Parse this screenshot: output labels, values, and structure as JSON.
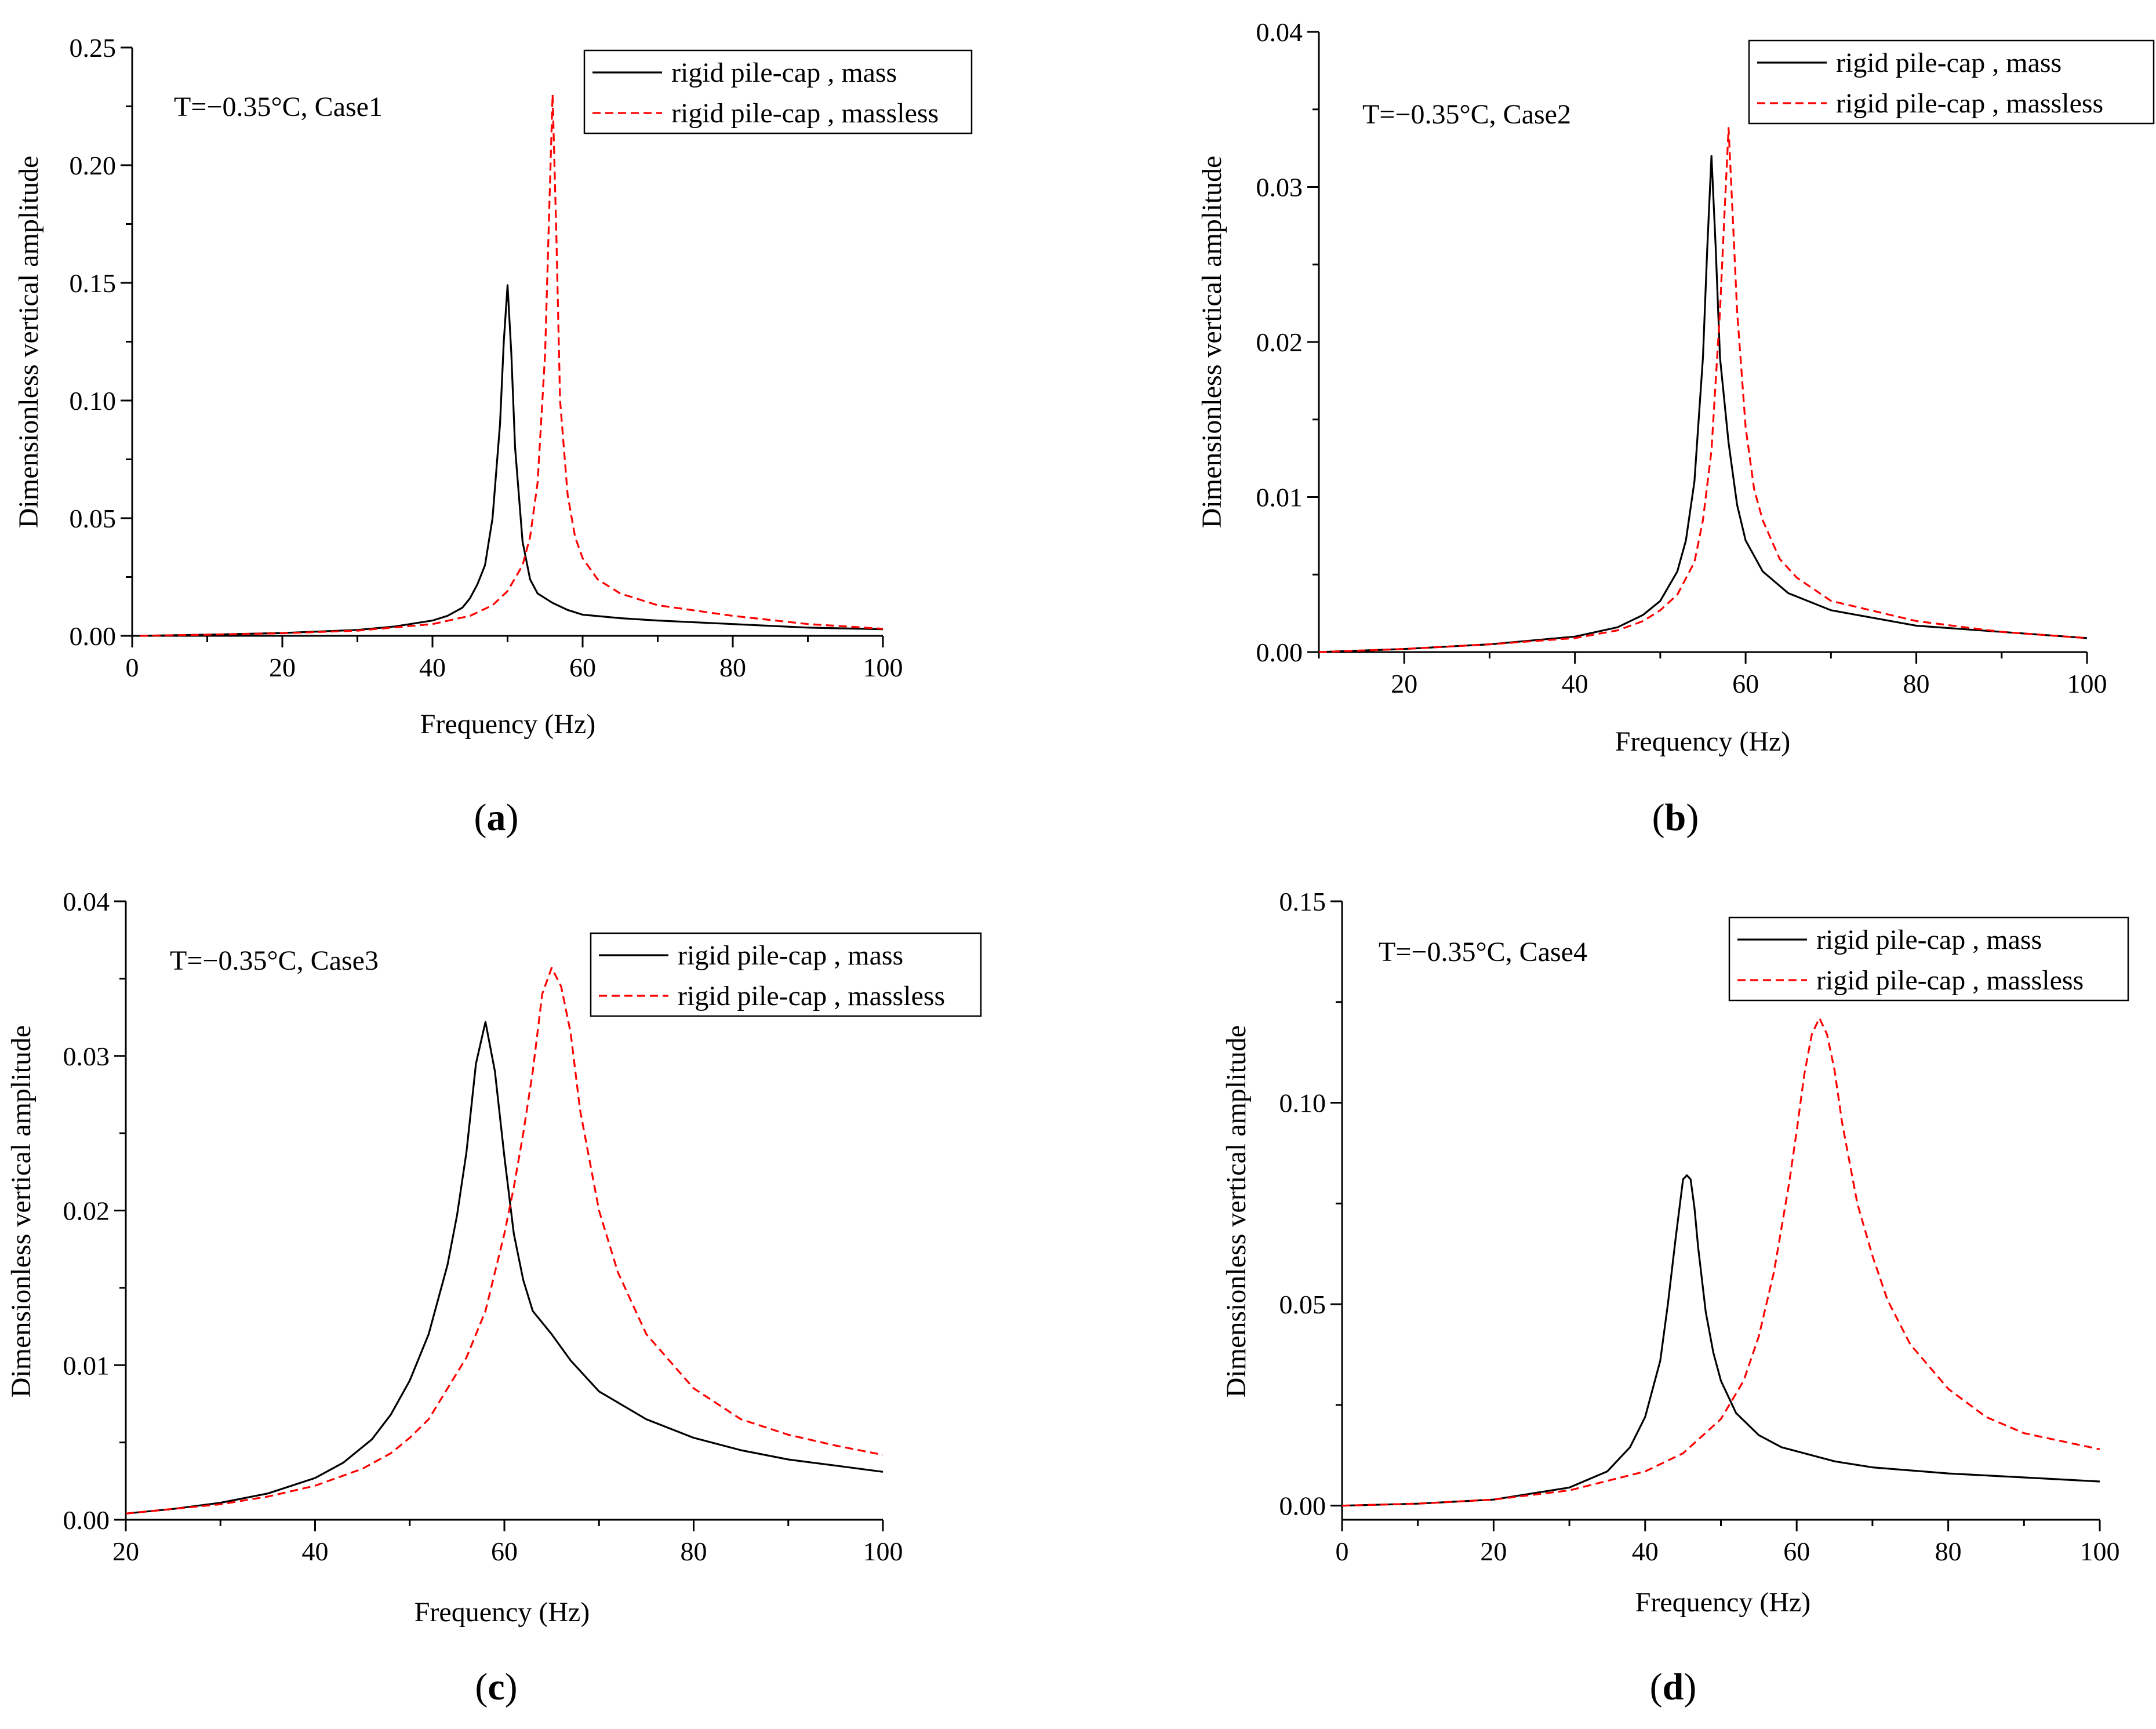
{
  "chart_data": [
    {
      "id": "a",
      "type": "line",
      "panel_label": "a",
      "annotation": "T=−0.35°C, Case1",
      "xlabel": "Frequency (Hz)",
      "ylabel": "Dimensionless vertical amplitude",
      "xlim": [
        0,
        100
      ],
      "ylim": [
        0,
        0.25
      ],
      "xticks": [
        0,
        20,
        40,
        60,
        80,
        100
      ],
      "xtick_labels": [
        "0",
        "20",
        "40",
        "60",
        "80",
        "100"
      ],
      "yticks": [
        0,
        0.05,
        0.1,
        0.15,
        0.2,
        0.25
      ],
      "ytick_labels": [
        "0.00",
        "0.05",
        "0.10",
        "0.15",
        "0.20",
        "0.25"
      ],
      "legend_position": "top-right",
      "series": [
        {
          "name": "rigid pile-cap , mass",
          "color": "#000000",
          "style": "solid",
          "x": [
            1,
            10,
            20,
            30,
            35,
            40,
            42,
            44,
            45,
            46,
            47,
            48,
            49,
            49.5,
            50,
            50.5,
            51,
            52,
            53,
            54,
            56,
            58,
            60,
            65,
            70,
            80,
            90,
            100
          ],
          "y": [
            0.0,
            0.0005,
            0.0012,
            0.0025,
            0.004,
            0.0065,
            0.0085,
            0.012,
            0.016,
            0.022,
            0.03,
            0.05,
            0.09,
            0.125,
            0.149,
            0.12,
            0.08,
            0.04,
            0.024,
            0.018,
            0.014,
            0.011,
            0.009,
            0.0075,
            0.0065,
            0.005,
            0.0035,
            0.0028
          ]
        },
        {
          "name": "rigid pile-cap , massless",
          "color": "#ff0000",
          "style": "dashed",
          "x": [
            1,
            10,
            20,
            30,
            40,
            45,
            48,
            50,
            52,
            53,
            54,
            55,
            55.5,
            56,
            56.5,
            57,
            58,
            59,
            60,
            62,
            65,
            70,
            80,
            90,
            100
          ],
          "y": [
            0.0,
            0.0005,
            0.0011,
            0.0022,
            0.005,
            0.0085,
            0.013,
            0.019,
            0.03,
            0.042,
            0.065,
            0.12,
            0.175,
            0.23,
            0.17,
            0.1,
            0.06,
            0.042,
            0.033,
            0.024,
            0.018,
            0.013,
            0.0085,
            0.005,
            0.003
          ]
        }
      ]
    },
    {
      "id": "b",
      "type": "line",
      "panel_label": "b",
      "annotation": "T=−0.35°C, Case2",
      "xlabel": "Frequency (Hz)",
      "ylabel": "Dimensionless vertical amplitude",
      "xlim": [
        10,
        100
      ],
      "ylim": [
        0,
        0.04
      ],
      "xticks": [
        20,
        40,
        60,
        80,
        100
      ],
      "xtick_labels": [
        "20",
        "40",
        "60",
        "80",
        "100"
      ],
      "yticks": [
        0,
        0.01,
        0.02,
        0.03,
        0.04
      ],
      "ytick_labels": [
        "0.00",
        "0.01",
        "0.02",
        "0.03",
        "0.04"
      ],
      "legend_position": "top-right",
      "series": [
        {
          "name": "rigid pile-cap , mass",
          "color": "#000000",
          "style": "solid",
          "x": [
            10,
            20,
            30,
            40,
            45,
            48,
            50,
            52,
            53,
            54,
            55,
            55.5,
            56,
            56.5,
            57,
            58,
            59,
            60,
            62,
            65,
            70,
            80,
            90,
            100
          ],
          "y": [
            0.0,
            0.0002,
            0.0005,
            0.001,
            0.0016,
            0.0024,
            0.0033,
            0.0052,
            0.0072,
            0.011,
            0.019,
            0.026,
            0.032,
            0.026,
            0.019,
            0.0135,
            0.0095,
            0.0072,
            0.0052,
            0.0038,
            0.0027,
            0.0017,
            0.0013,
            0.0009
          ]
        },
        {
          "name": "rigid pile-cap , massless",
          "color": "#ff0000",
          "style": "dashed",
          "x": [
            10,
            20,
            30,
            40,
            45,
            48,
            50,
            52,
            54,
            55,
            56,
            57,
            57.5,
            58,
            58.5,
            59,
            60,
            61,
            62,
            64,
            66,
            70,
            80,
            90,
            100
          ],
          "y": [
            0.0,
            0.0002,
            0.0005,
            0.0009,
            0.0014,
            0.002,
            0.0027,
            0.0037,
            0.0058,
            0.0085,
            0.013,
            0.022,
            0.028,
            0.0338,
            0.028,
            0.022,
            0.0145,
            0.0105,
            0.0085,
            0.006,
            0.0048,
            0.0033,
            0.002,
            0.0013,
            0.0009
          ]
        }
      ]
    },
    {
      "id": "c",
      "type": "line",
      "panel_label": "c",
      "annotation": "T=−0.35°C, Case3",
      "xlabel": "Frequency (Hz)",
      "ylabel": "Dimensionless vertical amplitude",
      "xlim": [
        20,
        100
      ],
      "ylim": [
        0,
        0.04
      ],
      "xticks": [
        20,
        40,
        60,
        80,
        100
      ],
      "xtick_labels": [
        "20",
        "40",
        "60",
        "80",
        "100"
      ],
      "yticks": [
        0,
        0.01,
        0.02,
        0.03,
        0.04
      ],
      "ytick_labels": [
        "0.00",
        "0.01",
        "0.02",
        "0.03",
        "0.04"
      ],
      "legend_position": "top-right",
      "series": [
        {
          "name": "rigid pile-cap , mass",
          "color": "#000000",
          "style": "solid",
          "x": [
            20,
            25,
            30,
            35,
            40,
            43,
            46,
            48,
            50,
            52,
            54,
            55,
            56,
            57,
            58,
            59,
            60,
            61,
            62,
            63,
            65,
            67,
            70,
            75,
            80,
            85,
            90,
            95,
            100
          ],
          "y": [
            0.0004,
            0.0007,
            0.0011,
            0.0017,
            0.0027,
            0.0037,
            0.0052,
            0.0068,
            0.009,
            0.012,
            0.0165,
            0.0197,
            0.0238,
            0.0295,
            0.0322,
            0.029,
            0.0235,
            0.0185,
            0.0155,
            0.0135,
            0.012,
            0.0103,
            0.0083,
            0.0065,
            0.0053,
            0.0045,
            0.0039,
            0.0035,
            0.0031
          ]
        },
        {
          "name": "rigid pile-cap , massless",
          "color": "#ff0000",
          "style": "dashed",
          "x": [
            20,
            25,
            30,
            35,
            40,
            45,
            48,
            50,
            52,
            54,
            56,
            58,
            60,
            61,
            62,
            63,
            64,
            65,
            66,
            67,
            68,
            70,
            72,
            75,
            80,
            85,
            90,
            95,
            100
          ],
          "y": [
            0.0004,
            0.0007,
            0.001,
            0.0015,
            0.0022,
            0.0033,
            0.0043,
            0.0053,
            0.0065,
            0.0085,
            0.0105,
            0.0135,
            0.0185,
            0.0215,
            0.025,
            0.029,
            0.034,
            0.0357,
            0.0345,
            0.0315,
            0.0265,
            0.02,
            0.016,
            0.012,
            0.0085,
            0.0065,
            0.0055,
            0.0048,
            0.0042
          ]
        }
      ]
    },
    {
      "id": "d",
      "type": "line",
      "panel_label": "d",
      "annotation": "T=−0.35°C, Case4",
      "xlabel": "Frequency (Hz)",
      "ylabel": "Dimensionless vertical amplitude",
      "xlim": [
        0,
        100
      ],
      "ylim": [
        -0.0035,
        0.15
      ],
      "xticks": [
        0,
        20,
        40,
        60,
        80,
        100
      ],
      "xtick_labels": [
        "0",
        "20",
        "40",
        "60",
        "80",
        "100"
      ],
      "yticks": [
        0,
        0.05,
        0.1,
        0.15
      ],
      "ytick_labels": [
        "0.00",
        "0.05",
        "0.10",
        "0.15"
      ],
      "legend_position": "top-right",
      "series": [
        {
          "name": "rigid pile-cap , mass",
          "color": "#000000",
          "style": "solid",
          "x": [
            0,
            10,
            20,
            30,
            35,
            38,
            40,
            42,
            43,
            44,
            45,
            45.5,
            46,
            46.5,
            47,
            48,
            49,
            50,
            52,
            55,
            58,
            60,
            65,
            70,
            80,
            90,
            100
          ],
          "y": [
            0.0,
            0.0005,
            0.0015,
            0.0045,
            0.0085,
            0.0145,
            0.022,
            0.036,
            0.05,
            0.066,
            0.081,
            0.082,
            0.081,
            0.074,
            0.064,
            0.048,
            0.038,
            0.031,
            0.023,
            0.0175,
            0.0145,
            0.0135,
            0.011,
            0.0095,
            0.008,
            0.007,
            0.006
          ]
        },
        {
          "name": "rigid pile-cap , massless",
          "color": "#ff0000",
          "style": "dashed",
          "x": [
            0,
            10,
            20,
            30,
            40,
            45,
            50,
            53,
            55,
            57,
            59,
            60,
            61,
            62,
            63,
            64,
            65,
            66,
            67,
            68,
            70,
            72,
            75,
            80,
            85,
            90,
            95,
            100
          ],
          "y": [
            0.0,
            0.0005,
            0.0015,
            0.0038,
            0.0085,
            0.013,
            0.0215,
            0.031,
            0.042,
            0.058,
            0.08,
            0.093,
            0.107,
            0.117,
            0.121,
            0.117,
            0.108,
            0.095,
            0.085,
            0.075,
            0.062,
            0.051,
            0.04,
            0.029,
            0.022,
            0.018,
            0.016,
            0.014
          ]
        }
      ]
    }
  ]
}
